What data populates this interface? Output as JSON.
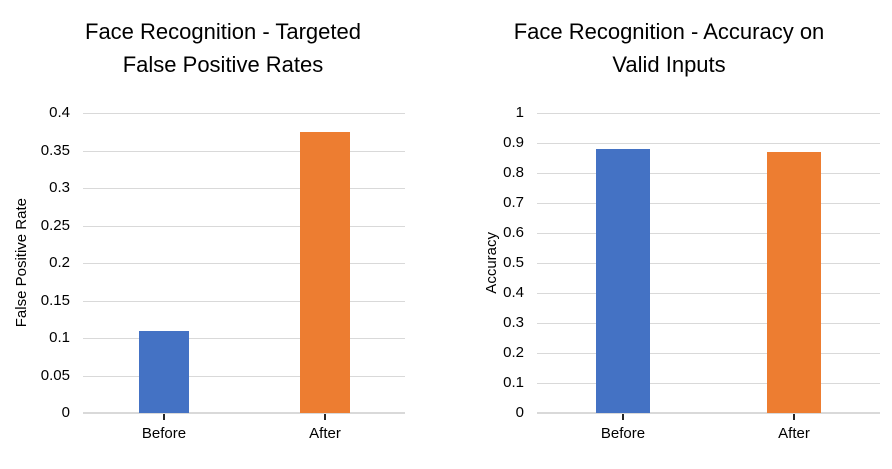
{
  "styles": {
    "background": "#FFFFFF",
    "gridline_color": "#D9D9D9",
    "axis_line_color": "#D9D9D9",
    "category_tick_color": "#262626",
    "text_color": "#000000",
    "series_blue": "#4472C4",
    "series_orange": "#ED7D31"
  },
  "chart_data": [
    {
      "type": "bar",
      "title": "Face Recognition - Targeted False Positive Rates",
      "title_lines": [
        "Face Recognition - Targeted",
        "False Positive Rates"
      ],
      "xlabel": "",
      "ylabel": "False Positive Rate",
      "categories": [
        "Before",
        "After"
      ],
      "values": [
        0.11,
        0.375
      ],
      "bar_colors": [
        "#4472C4",
        "#ED7D31"
      ],
      "ylim": [
        0,
        0.4
      ],
      "ystep": 0.05,
      "ytick_labels": [
        "0",
        "0.05",
        "0.1",
        "0.15",
        "0.2",
        "0.25",
        "0.3",
        "0.35",
        "0.4"
      ],
      "grid": true,
      "legend": false
    },
    {
      "type": "bar",
      "title": "Face Recognition - Accuracy on Valid Inputs",
      "title_lines": [
        "Face Recognition - Accuracy on",
        "Valid Inputs"
      ],
      "xlabel": "",
      "ylabel": "Accuracy",
      "categories": [
        "Before",
        "After"
      ],
      "values": [
        0.88,
        0.87
      ],
      "bar_colors": [
        "#4472C4",
        "#ED7D31"
      ],
      "ylim": [
        0,
        1
      ],
      "ystep": 0.1,
      "ytick_labels": [
        "0",
        "0.1",
        "0.2",
        "0.3",
        "0.4",
        "0.5",
        "0.6",
        "0.7",
        "0.8",
        "0.9",
        "1"
      ],
      "grid": true,
      "legend": false
    }
  ]
}
